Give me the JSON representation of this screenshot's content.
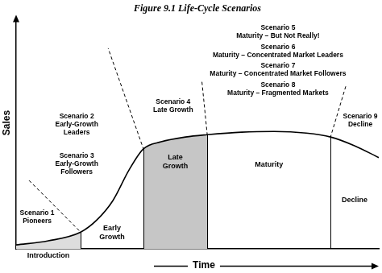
{
  "chart_data": {
    "type": "line",
    "title": "Figure 9.1 Life-Cycle Scenarios",
    "x_label": "Time",
    "y_label": "Sales",
    "x": [
      0,
      8.9,
      17.8,
      22.2,
      26.7,
      31.1,
      35.1,
      40,
      46.7,
      52.7,
      62.2,
      71.1,
      80,
      86.7,
      93.3,
      100
    ],
    "values": [
      1.7,
      3.5,
      7.3,
      12.5,
      21.1,
      34.3,
      43.6,
      46.7,
      48.8,
      49.8,
      50.9,
      51.2,
      50.5,
      48.8,
      45.0,
      39.8
    ],
    "xlim": [
      0,
      100
    ],
    "ylim": [
      0,
      100
    ],
    "tick_labels": false,
    "grid": false,
    "color": "#000000",
    "stages": [
      {
        "label": [
          "Introduction"
        ],
        "x": [
          0,
          17.8
        ]
      },
      {
        "label": [
          "Early",
          "Growth"
        ],
        "x": [
          17.8,
          35.1
        ]
      },
      {
        "label": [
          "Late",
          "Growth"
        ],
        "x": [
          35.1,
          52.7
        ]
      },
      {
        "label": [
          "Maturity"
        ],
        "x": [
          52.7,
          86.7
        ]
      },
      {
        "label": [
          "Decline"
        ],
        "x": [
          86.7,
          100
        ]
      }
    ],
    "annotations": [
      {
        "title": "Scenario 1",
        "text": [
          "Pioneers"
        ]
      },
      {
        "title": "Scenario 2",
        "text": [
          "Early-Growth",
          "Leaders"
        ]
      },
      {
        "title": "Scenario 3",
        "text": [
          "Early-Growth",
          "Followers"
        ]
      },
      {
        "title": "Scenario 4",
        "text": [
          "Late Growth"
        ]
      },
      {
        "title": "Scenario 5",
        "text": [
          "Maturity – But Not Really!"
        ]
      },
      {
        "title": "Scenario 6",
        "text": [
          "Maturity – Concentrated Market Leaders"
        ]
      },
      {
        "title": "Scenario 7",
        "text": [
          "Maturity – Concentrated Market Followers"
        ]
      },
      {
        "title": "Scenario 8",
        "text": [
          "Maturity – Fragmented Markets"
        ]
      },
      {
        "title": "Scenario 9",
        "text": [
          "Decline"
        ]
      }
    ]
  }
}
